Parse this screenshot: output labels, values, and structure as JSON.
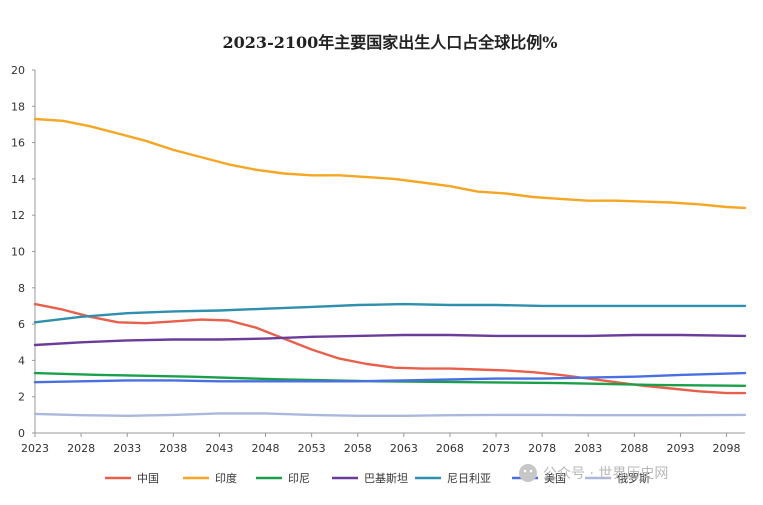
{
  "chart_data": {
    "type": "line",
    "title": "2023-2100年主要国家出生人口占全球比例%",
    "xlabel": "",
    "ylabel": "",
    "xlim": [
      2023,
      2100
    ],
    "ylim": [
      0,
      20
    ],
    "y_ticks": [
      0,
      2,
      4,
      6,
      8,
      10,
      12,
      14,
      16,
      18,
      20
    ],
    "x_ticks": [
      2023,
      2028,
      2033,
      2038,
      2043,
      2048,
      2053,
      2058,
      2063,
      2068,
      2073,
      2078,
      2083,
      2088,
      2093,
      2098
    ],
    "grid": false,
    "legend_position": "bottom",
    "series": [
      {
        "name": "中国",
        "color": "#e8604c",
        "x": [
          2023,
          2026,
          2029,
          2032,
          2035,
          2038,
          2041,
          2044,
          2047,
          2050,
          2053,
          2056,
          2059,
          2062,
          2065,
          2068,
          2071,
          2074,
          2077,
          2080,
          2083,
          2086,
          2089,
          2092,
          2095,
          2098,
          2100
        ],
        "values": [
          7.1,
          6.8,
          6.4,
          6.1,
          6.05,
          6.15,
          6.25,
          6.2,
          5.8,
          5.2,
          4.6,
          4.1,
          3.8,
          3.6,
          3.55,
          3.55,
          3.5,
          3.45,
          3.35,
          3.2,
          3.0,
          2.8,
          2.6,
          2.45,
          2.3,
          2.2,
          2.2
        ]
      },
      {
        "name": "印度",
        "color": "#f5a623",
        "x": [
          2023,
          2026,
          2029,
          2032,
          2035,
          2038,
          2041,
          2044,
          2047,
          2050,
          2053,
          2056,
          2059,
          2062,
          2065,
          2068,
          2071,
          2074,
          2077,
          2080,
          2083,
          2086,
          2089,
          2092,
          2095,
          2098,
          2100
        ],
        "values": [
          17.3,
          17.2,
          16.9,
          16.5,
          16.1,
          15.6,
          15.2,
          14.8,
          14.5,
          14.3,
          14.2,
          14.2,
          14.1,
          14.0,
          13.8,
          13.6,
          13.3,
          13.2,
          13.0,
          12.9,
          12.8,
          12.8,
          12.75,
          12.7,
          12.6,
          12.45,
          12.4
        ]
      },
      {
        "name": "印尼",
        "color": "#1aa04a",
        "x": [
          2023,
          2030,
          2040,
          2050,
          2060,
          2070,
          2080,
          2090,
          2100
        ],
        "values": [
          3.3,
          3.2,
          3.1,
          2.95,
          2.85,
          2.8,
          2.75,
          2.65,
          2.6
        ]
      },
      {
        "name": "巴基斯坦",
        "color": "#6a3d9a",
        "x": [
          2023,
          2028,
          2033,
          2038,
          2043,
          2048,
          2053,
          2058,
          2063,
          2068,
          2073,
          2078,
          2083,
          2088,
          2093,
          2100
        ],
        "values": [
          4.85,
          5.0,
          5.1,
          5.15,
          5.15,
          5.2,
          5.3,
          5.35,
          5.4,
          5.4,
          5.35,
          5.35,
          5.35,
          5.4,
          5.4,
          5.35
        ]
      },
      {
        "name": "尼日利亚",
        "color": "#2e8fae",
        "x": [
          2023,
          2028,
          2033,
          2038,
          2043,
          2048,
          2053,
          2058,
          2063,
          2068,
          2073,
          2078,
          2083,
          2088,
          2093,
          2100
        ],
        "values": [
          6.1,
          6.4,
          6.6,
          6.7,
          6.75,
          6.85,
          6.95,
          7.05,
          7.1,
          7.05,
          7.05,
          7.0,
          7.0,
          7.0,
          7.0,
          7.0
        ]
      },
      {
        "name": "美国",
        "color": "#4a6fe3",
        "x": [
          2023,
          2028,
          2033,
          2038,
          2043,
          2048,
          2053,
          2058,
          2063,
          2068,
          2073,
          2078,
          2083,
          2088,
          2093,
          2100
        ],
        "values": [
          2.8,
          2.85,
          2.9,
          2.9,
          2.85,
          2.85,
          2.85,
          2.85,
          2.9,
          2.95,
          3.0,
          3.0,
          3.05,
          3.1,
          3.2,
          3.3
        ]
      },
      {
        "name": "俄罗斯",
        "color": "#a9b8dc",
        "x": [
          2023,
          2028,
          2033,
          2038,
          2043,
          2048,
          2053,
          2058,
          2063,
          2068,
          2073,
          2078,
          2083,
          2088,
          2093,
          2100
        ],
        "values": [
          1.05,
          0.98,
          0.95,
          1.0,
          1.08,
          1.08,
          1.0,
          0.95,
          0.95,
          0.98,
          1.0,
          1.0,
          0.98,
          0.98,
          0.98,
          1.0
        ]
      }
    ]
  },
  "watermark": {
    "text": "公众号 · 世界历史网",
    "icon": "wechat-icon"
  }
}
